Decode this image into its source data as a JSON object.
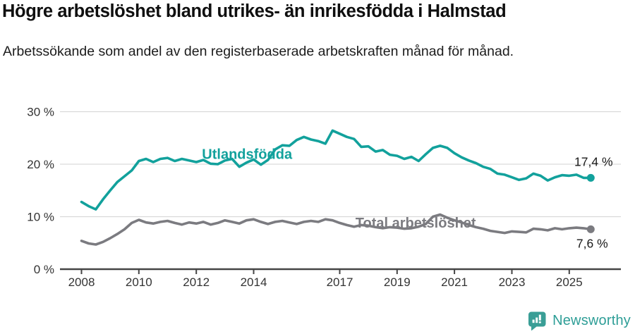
{
  "colors": {
    "grid": "#d9d9d9",
    "axis": "#454545",
    "tick_text": "#333333",
    "series_foreign_born": "#12a19c",
    "series_total": "#7b7b80",
    "logo": "#3a9e96"
  },
  "chart_data": {
    "type": "line",
    "title": "Högre arbetslöshet bland utrikes- än inrikesfödda i Halmstad",
    "subtitle": "Arbetssökande som andel av den registerbaserade arbetskraften månad för månad.",
    "grid": true,
    "legend_position": "inline-labels",
    "xlim": [
      2007.25,
      2026.8
    ],
    "ylim": [
      0,
      30
    ],
    "x_ticks": [
      2008,
      2010,
      2012,
      2014,
      2017,
      2019,
      2021,
      2023,
      2025
    ],
    "y_ticks": [
      {
        "value": 30,
        "label": "30 %"
      },
      {
        "value": 20,
        "label": "20 %"
      },
      {
        "value": 10,
        "label": "10 %"
      },
      {
        "value": 0,
        "label": "0 %"
      }
    ],
    "x_unit": "year (monthly series, values estimated quarterly from plot)",
    "x": [
      2008,
      2008.25,
      2008.5,
      2008.75,
      2009,
      2009.25,
      2009.5,
      2009.75,
      2010,
      2010.25,
      2010.5,
      2010.75,
      2011,
      2011.25,
      2011.5,
      2011.75,
      2012,
      2012.25,
      2012.5,
      2012.75,
      2013,
      2013.25,
      2013.5,
      2013.75,
      2014,
      2014.25,
      2014.5,
      2014.75,
      2015,
      2015.25,
      2015.5,
      2015.75,
      2016,
      2016.25,
      2016.5,
      2016.75,
      2017,
      2017.25,
      2017.5,
      2017.75,
      2018,
      2018.25,
      2018.5,
      2018.75,
      2019,
      2019.25,
      2019.5,
      2019.75,
      2020,
      2020.25,
      2020.5,
      2020.75,
      2021,
      2021.25,
      2021.5,
      2021.75,
      2022,
      2022.25,
      2022.5,
      2022.75,
      2023,
      2023.25,
      2023.5,
      2023.75,
      2024,
      2024.25,
      2024.5,
      2024.75,
      2025,
      2025.25,
      2025.5,
      2025.75
    ],
    "series": [
      {
        "name": "Utlandsfödda",
        "color": "#12a19c",
        "label_anchor": {
          "x": 2012.2,
          "y": 21.8
        },
        "end_label": {
          "text": "17,4 %",
          "dx": 4,
          "dy": -17
        },
        "end_value": 17.4,
        "values": [
          12.8,
          12.0,
          11.4,
          13.3,
          15.0,
          16.6,
          17.7,
          18.8,
          20.6,
          21.0,
          20.4,
          21.0,
          21.2,
          20.6,
          21.0,
          20.7,
          20.4,
          20.8,
          20.1,
          20.0,
          20.7,
          21.0,
          19.5,
          20.3,
          20.9,
          19.9,
          20.8,
          22.8,
          23.6,
          23.5,
          24.6,
          25.2,
          24.7,
          24.4,
          23.9,
          26.4,
          25.8,
          25.2,
          24.8,
          23.3,
          23.4,
          22.4,
          22.7,
          21.8,
          21.6,
          21.0,
          21.4,
          20.6,
          21.9,
          23.1,
          23.5,
          23.1,
          22.1,
          21.3,
          20.7,
          20.2,
          19.5,
          19.1,
          18.2,
          18.0,
          17.5,
          17.0,
          17.3,
          18.2,
          17.8,
          16.9,
          17.5,
          17.9,
          17.8,
          18.0,
          17.4,
          17.4
        ]
      },
      {
        "name": "Total arbetslöshet",
        "color": "#7b7b80",
        "label_anchor": {
          "x": 2017.55,
          "y": 8.7
        },
        "end_label": {
          "text": "7,6 %",
          "dx": 2,
          "dy": 26
        },
        "end_value": 7.6,
        "values": [
          5.4,
          4.9,
          4.7,
          5.2,
          5.9,
          6.7,
          7.6,
          8.8,
          9.4,
          8.9,
          8.7,
          9.0,
          9.2,
          8.8,
          8.5,
          8.9,
          8.7,
          9.0,
          8.5,
          8.8,
          9.3,
          9.0,
          8.7,
          9.3,
          9.5,
          9.0,
          8.6,
          9.0,
          9.2,
          8.9,
          8.6,
          9.0,
          9.2,
          9.0,
          9.5,
          9.3,
          8.8,
          8.4,
          8.1,
          8.4,
          8.3,
          8.0,
          7.8,
          8.0,
          7.9,
          7.7,
          7.8,
          8.1,
          8.6,
          10.0,
          10.4,
          9.8,
          9.3,
          8.9,
          8.4,
          8.0,
          7.7,
          7.3,
          7.1,
          6.9,
          7.2,
          7.1,
          7.0,
          7.7,
          7.6,
          7.4,
          7.8,
          7.6,
          7.8,
          7.9,
          7.8,
          7.6
        ]
      }
    ]
  },
  "footer": {
    "brand": "Newsworthy"
  }
}
